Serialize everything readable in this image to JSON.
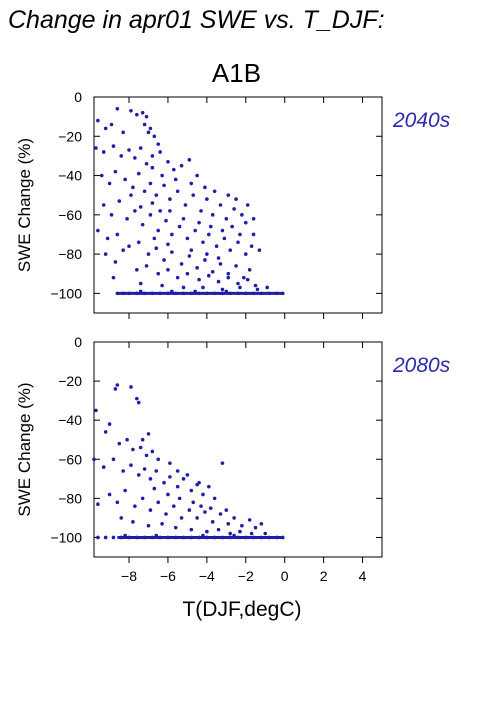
{
  "title": "Change in apr01 SWE vs. T_DJF:",
  "scenario": "A1B",
  "colors": {
    "points": "#1e1ea8",
    "period_label": "#2a2ab0",
    "frame": "#000000"
  },
  "chart_data": [
    {
      "type": "scatter",
      "panel_label": "2040s",
      "ylabel": "SWE Change (%)",
      "xlabel": "",
      "xlim": [
        -9.8,
        5
      ],
      "ylim": [
        -110,
        0
      ],
      "xticks": [
        -8,
        -6,
        -4,
        -2,
        0,
        2,
        4
      ],
      "yticks": [
        0,
        -20,
        -40,
        -60,
        -80,
        -100
      ],
      "ytick_labels": [
        "0",
        "−20",
        "−40",
        "−60",
        "−80",
        "−100"
      ],
      "grid": false,
      "points": [
        [
          -8.6,
          -6
        ],
        [
          -7.9,
          -7
        ],
        [
          -7.6,
          -9
        ],
        [
          -7.3,
          -8
        ],
        [
          -7.1,
          -10
        ],
        [
          -9.6,
          -12
        ],
        [
          -9.2,
          -16
        ],
        [
          -8.9,
          -14
        ],
        [
          -8.3,
          -18
        ],
        [
          -7.2,
          -14
        ],
        [
          -7.0,
          -18
        ],
        [
          -6.9,
          -16
        ],
        [
          -6.7,
          -20
        ],
        [
          -6.5,
          -24
        ],
        [
          -9.7,
          -26
        ],
        [
          -9.3,
          -28
        ],
        [
          -8.8,
          -25
        ],
        [
          -8.4,
          -30
        ],
        [
          -8.0,
          -27
        ],
        [
          -7.7,
          -31
        ],
        [
          -7.4,
          -26
        ],
        [
          -7.1,
          -34
        ],
        [
          -6.8,
          -30
        ],
        [
          -6.4,
          -28
        ],
        [
          -6.0,
          -33
        ],
        [
          -5.7,
          -37
        ],
        [
          -5.3,
          -35
        ],
        [
          -4.9,
          -32
        ],
        [
          -4.5,
          -40
        ],
        [
          -9.4,
          -40
        ],
        [
          -9.0,
          -44
        ],
        [
          -8.7,
          -38
        ],
        [
          -8.2,
          -42
        ],
        [
          -7.8,
          -46
        ],
        [
          -7.5,
          -39
        ],
        [
          -7.2,
          -48
        ],
        [
          -6.9,
          -44
        ],
        [
          -6.6,
          -50
        ],
        [
          -6.2,
          -45
        ],
        [
          -5.9,
          -52
        ],
        [
          -5.5,
          -48
        ],
        [
          -5.1,
          -55
        ],
        [
          -4.7,
          -50
        ],
        [
          -4.3,
          -58
        ],
        [
          -4.0,
          -52
        ],
        [
          -3.7,
          -60
        ],
        [
          -3.3,
          -55
        ],
        [
          -3.0,
          -62
        ],
        [
          -2.6,
          -57
        ],
        [
          -2.2,
          -60
        ],
        [
          -1.9,
          -55
        ],
        [
          -1.6,
          -62
        ],
        [
          -9.3,
          -55
        ],
        [
          -8.9,
          -60
        ],
        [
          -8.5,
          -53
        ],
        [
          -8.1,
          -62
        ],
        [
          -7.7,
          -58
        ],
        [
          -7.3,
          -65
        ],
        [
          -6.9,
          -60
        ],
        [
          -6.5,
          -68
        ],
        [
          -6.1,
          -63
        ],
        [
          -5.8,
          -70
        ],
        [
          -5.4,
          -66
        ],
        [
          -5.0,
          -72
        ],
        [
          -4.6,
          -68
        ],
        [
          -4.2,
          -74
        ],
        [
          -3.9,
          -70
        ],
        [
          -3.5,
          -76
        ],
        [
          -3.1,
          -72
        ],
        [
          -2.8,
          -78
        ],
        [
          -2.4,
          -74
        ],
        [
          -2.0,
          -80
        ],
        [
          -1.7,
          -76
        ],
        [
          -9.6,
          -68
        ],
        [
          -9.1,
          -72
        ],
        [
          -8.6,
          -70
        ],
        [
          -8.0,
          -76
        ],
        [
          -7.5,
          -74
        ],
        [
          -7.0,
          -80
        ],
        [
          -6.6,
          -77
        ],
        [
          -6.2,
          -83
        ],
        [
          -5.8,
          -79
        ],
        [
          -5.3,
          -85
        ],
        [
          -4.9,
          -81
        ],
        [
          -4.5,
          -87
        ],
        [
          -4.1,
          -83
        ],
        [
          -3.7,
          -89
        ],
        [
          -3.3,
          -85
        ],
        [
          -2.9,
          -90
        ],
        [
          -2.5,
          -86
        ],
        [
          -2.1,
          -92
        ],
        [
          -1.8,
          -88
        ],
        [
          -9.2,
          -80
        ],
        [
          -8.7,
          -84
        ],
        [
          -8.3,
          -78
        ],
        [
          -7.6,
          -88
        ],
        [
          -7.1,
          -86
        ],
        [
          -6.5,
          -90
        ],
        [
          -6.0,
          -88
        ],
        [
          -5.5,
          -92
        ],
        [
          -5.0,
          -90
        ],
        [
          -4.4,
          -93
        ],
        [
          -3.9,
          -91
        ],
        [
          -3.4,
          -94
        ],
        [
          -2.9,
          -92
        ],
        [
          -2.4,
          -95
        ],
        [
          -1.9,
          -93
        ],
        [
          -1.5,
          -96
        ],
        [
          -8.8,
          -92
        ],
        [
          -7.4,
          -95
        ],
        [
          -6.3,
          -96
        ],
        [
          -5.2,
          -97
        ],
        [
          -4.2,
          -97
        ],
        [
          -3.2,
          -98
        ],
        [
          -2.3,
          -97
        ],
        [
          -1.4,
          -98
        ],
        [
          -0.9,
          -97
        ],
        [
          -6.8,
          -36
        ],
        [
          -6.3,
          -40
        ],
        [
          -5.6,
          -42
        ],
        [
          -4.8,
          -44
        ],
        [
          -4.1,
          -46
        ],
        [
          -3.6,
          -48
        ],
        [
          -2.9,
          -50
        ],
        [
          -2.5,
          -52
        ],
        [
          -2.0,
          -64
        ],
        [
          -1.6,
          -70
        ],
        [
          -1.3,
          -78
        ],
        [
          -5.9,
          -58
        ],
        [
          -5.2,
          -62
        ],
        [
          -4.4,
          -64
        ],
        [
          -3.8,
          -66
        ],
        [
          -3.2,
          -68
        ],
        [
          -2.7,
          -66
        ],
        [
          -2.3,
          -70
        ],
        [
          -6.7,
          -72
        ],
        [
          -6.0,
          -75
        ],
        [
          -4.8,
          -78
        ],
        [
          -4.0,
          -80
        ],
        [
          -3.4,
          -82
        ],
        [
          -7.9,
          -50
        ],
        [
          -7.4,
          -56
        ],
        [
          -6.8,
          -54
        ],
        [
          -6.4,
          -58
        ],
        [
          -8.6,
          -100
        ],
        [
          -8.3,
          -100
        ],
        [
          -8.0,
          -100
        ],
        [
          -7.6,
          -100
        ],
        [
          -7.2,
          -100
        ],
        [
          -6.8,
          -100
        ],
        [
          -6.4,
          -100
        ],
        [
          -6.0,
          -100
        ],
        [
          -5.6,
          -100
        ],
        [
          -5.2,
          -100
        ],
        [
          -4.8,
          -100
        ],
        [
          -4.4,
          -100
        ],
        [
          -4.0,
          -100
        ],
        [
          -3.6,
          -100
        ],
        [
          -3.2,
          -100
        ],
        [
          -2.8,
          -100
        ],
        [
          -2.4,
          -100
        ],
        [
          -2.0,
          -100
        ],
        [
          -1.6,
          -100
        ],
        [
          -1.2,
          -100
        ],
        [
          -0.8,
          -100
        ],
        [
          -0.4,
          -100
        ],
        [
          -0.1,
          -100
        ],
        [
          -7.4,
          -99
        ],
        [
          -5.8,
          -99
        ],
        [
          -4.6,
          -99
        ],
        [
          -3.0,
          -99
        ]
      ]
    },
    {
      "type": "scatter",
      "panel_label": "2080s",
      "ylabel": "SWE Change (%)",
      "xlabel": "T(DJF,degC)",
      "xlim": [
        -9.8,
        5
      ],
      "ylim": [
        -110,
        0
      ],
      "xticks": [
        -8,
        -6,
        -4,
        -2,
        0,
        2,
        4
      ],
      "xtick_labels": [
        "−8",
        "−6",
        "−4",
        "−2",
        "0",
        "2",
        "4"
      ],
      "yticks": [
        0,
        -20,
        -40,
        -60,
        -80,
        -100
      ],
      "ytick_labels": [
        "0",
        "−20",
        "−40",
        "−60",
        "−80",
        "−100"
      ],
      "grid": false,
      "points": [
        [
          -8.6,
          -22
        ],
        [
          -8.7,
          -24
        ],
        [
          -7.9,
          -23
        ],
        [
          -7.6,
          -29
        ],
        [
          -7.5,
          -31
        ],
        [
          -9.7,
          -35
        ],
        [
          -9.0,
          -42
        ],
        [
          -7.3,
          -50
        ],
        [
          -7.0,
          -47
        ],
        [
          -9.2,
          -46
        ],
        [
          -8.5,
          -52
        ],
        [
          -8.1,
          -50
        ],
        [
          -7.8,
          -55
        ],
        [
          -7.4,
          -54
        ],
        [
          -7.1,
          -58
        ],
        [
          -6.8,
          -56
        ],
        [
          -6.5,
          -60
        ],
        [
          -9.8,
          -60
        ],
        [
          -9.3,
          -64
        ],
        [
          -8.8,
          -60
        ],
        [
          -8.3,
          -66
        ],
        [
          -7.9,
          -63
        ],
        [
          -7.5,
          -68
        ],
        [
          -7.2,
          -65
        ],
        [
          -6.9,
          -70
        ],
        [
          -6.6,
          -66
        ],
        [
          -6.2,
          -72
        ],
        [
          -5.9,
          -69
        ],
        [
          -5.5,
          -74
        ],
        [
          -5.2,
          -70
        ],
        [
          -4.8,
          -76
        ],
        [
          -4.5,
          -73
        ],
        [
          -4.2,
          -78
        ],
        [
          -3.9,
          -74
        ],
        [
          -3.6,
          -80
        ],
        [
          -3.2,
          -62
        ],
        [
          -9.6,
          -83
        ],
        [
          -9.0,
          -78
        ],
        [
          -8.6,
          -82
        ],
        [
          -8.2,
          -76
        ],
        [
          -7.7,
          -84
        ],
        [
          -7.3,
          -80
        ],
        [
          -6.9,
          -86
        ],
        [
          -6.5,
          -82
        ],
        [
          -6.1,
          -88
        ],
        [
          -5.7,
          -84
        ],
        [
          -5.3,
          -90
        ],
        [
          -4.9,
          -86
        ],
        [
          -4.5,
          -90
        ],
        [
          -4.1,
          -87
        ],
        [
          -3.7,
          -92
        ],
        [
          -3.3,
          -88
        ],
        [
          -2.9,
          -93
        ],
        [
          -2.6,
          -90
        ],
        [
          -2.2,
          -94
        ],
        [
          -1.8,
          -91
        ],
        [
          -1.5,
          -95
        ],
        [
          -1.2,
          -93
        ],
        [
          -8.4,
          -90
        ],
        [
          -7.8,
          -92
        ],
        [
          -7.0,
          -94
        ],
        [
          -6.3,
          -93
        ],
        [
          -5.6,
          -95
        ],
        [
          -4.8,
          -96
        ],
        [
          -4.0,
          -97
        ],
        [
          -3.4,
          -96
        ],
        [
          -2.8,
          -98
        ],
        [
          -2.3,
          -97
        ],
        [
          -1.7,
          -98
        ],
        [
          -1.0,
          -98
        ],
        [
          -6.7,
          -75
        ],
        [
          -6.0,
          -78
        ],
        [
          -5.4,
          -80
        ],
        [
          -4.7,
          -82
        ],
        [
          -4.3,
          -84
        ],
        [
          -3.8,
          -85
        ],
        [
          -3.0,
          -86
        ],
        [
          -5.9,
          -62
        ],
        [
          -5.5,
          -66
        ],
        [
          -5.0,
          -68
        ],
        [
          -4.4,
          -72
        ],
        [
          -9.6,
          -100
        ],
        [
          -9.2,
          -100
        ],
        [
          -8.8,
          -100
        ],
        [
          -8.4,
          -100
        ],
        [
          -8.0,
          -100
        ],
        [
          -7.6,
          -100
        ],
        [
          -7.2,
          -100
        ],
        [
          -6.8,
          -100
        ],
        [
          -6.4,
          -100
        ],
        [
          -6.0,
          -100
        ],
        [
          -5.6,
          -100
        ],
        [
          -5.2,
          -100
        ],
        [
          -4.8,
          -100
        ],
        [
          -4.4,
          -100
        ],
        [
          -4.0,
          -100
        ],
        [
          -3.6,
          -100
        ],
        [
          -3.2,
          -100
        ],
        [
          -2.8,
          -100
        ],
        [
          -2.4,
          -100
        ],
        [
          -2.0,
          -100
        ],
        [
          -1.6,
          -100
        ],
        [
          -1.2,
          -100
        ],
        [
          -0.8,
          -100
        ],
        [
          -0.4,
          -100
        ],
        [
          -0.1,
          -100
        ],
        [
          -8.2,
          -99
        ],
        [
          -6.6,
          -99
        ],
        [
          -4.2,
          -99
        ],
        [
          -2.6,
          -99
        ]
      ]
    }
  ]
}
